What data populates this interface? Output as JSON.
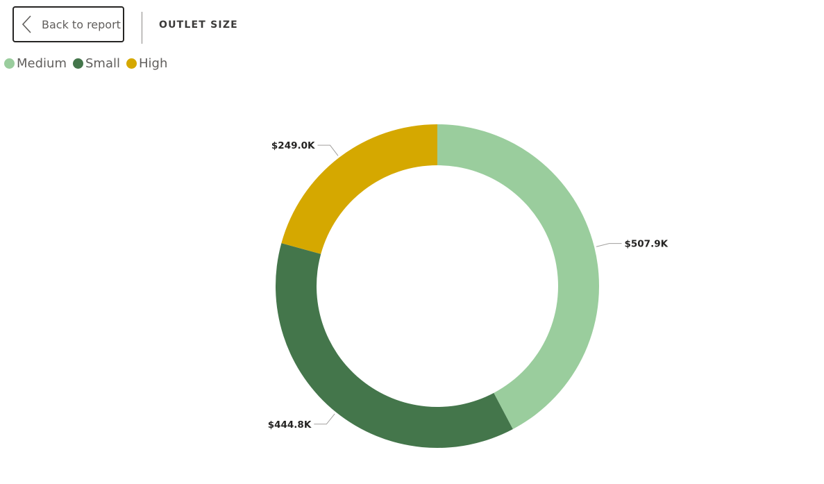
{
  "header": {
    "back_button_label": "Back to report",
    "drill_title": "OUTLET SIZE"
  },
  "legend": [
    {
      "label": "Medium",
      "color": "#9ACD9D"
    },
    {
      "label": "Small",
      "color": "#44764B"
    },
    {
      "label": "High",
      "color": "#D5A800"
    }
  ],
  "icons": {
    "back": "chevron-left-icon"
  },
  "chart_data": {
    "type": "donut",
    "title": "",
    "categories": [
      "Medium",
      "Small",
      "High"
    ],
    "values": [
      507.9,
      444.8,
      249.0
    ],
    "unit": "$K",
    "data_labels": [
      "$507.9K",
      "$444.8K",
      "$249.0K"
    ],
    "colors": [
      "#9ACD9D",
      "#44764B",
      "#D5A800"
    ],
    "start_angle_deg": 0,
    "direction": "clockwise",
    "legend_position": "top-left"
  }
}
